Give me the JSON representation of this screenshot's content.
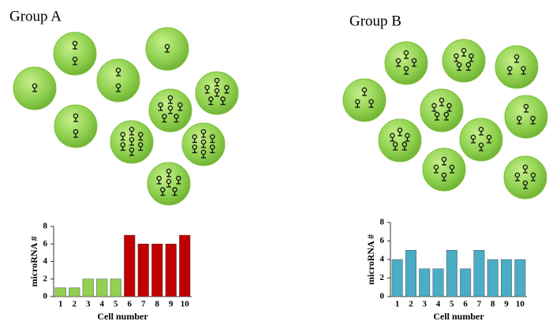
{
  "chart_data": [
    {
      "type": "bar",
      "title": "Group A",
      "xlabel": "Cell number",
      "ylabel": "microRNA #",
      "categories": [
        "1",
        "2",
        "3",
        "4",
        "5",
        "6",
        "7",
        "8",
        "9",
        "10"
      ],
      "values": [
        1,
        1,
        2,
        2,
        2,
        7,
        6,
        6,
        6,
        7
      ],
      "colors": [
        "#92d050",
        "#92d050",
        "#92d050",
        "#92d050",
        "#92d050",
        "#c00000",
        "#c00000",
        "#c00000",
        "#c00000",
        "#c00000"
      ],
      "ylim": [
        0,
        8
      ],
      "yticks": [
        0,
        2,
        4,
        6,
        8
      ]
    },
    {
      "type": "bar",
      "title": "Group B",
      "xlabel": "Cell number",
      "ylabel": "microRNA #",
      "categories": [
        "1",
        "2",
        "3",
        "4",
        "5",
        "6",
        "7",
        "8",
        "9",
        "10"
      ],
      "values": [
        4,
        5,
        3,
        3,
        5,
        3,
        5,
        4,
        4,
        4
      ],
      "colors": [
        "#4bacc6",
        "#4bacc6",
        "#4bacc6",
        "#4bacc6",
        "#4bacc6",
        "#4bacc6",
        "#4bacc6",
        "#4bacc6",
        "#4bacc6",
        "#4bacc6"
      ],
      "ylim": [
        0,
        8
      ],
      "yticks": [
        0,
        2,
        4,
        6,
        8
      ]
    }
  ]
}
